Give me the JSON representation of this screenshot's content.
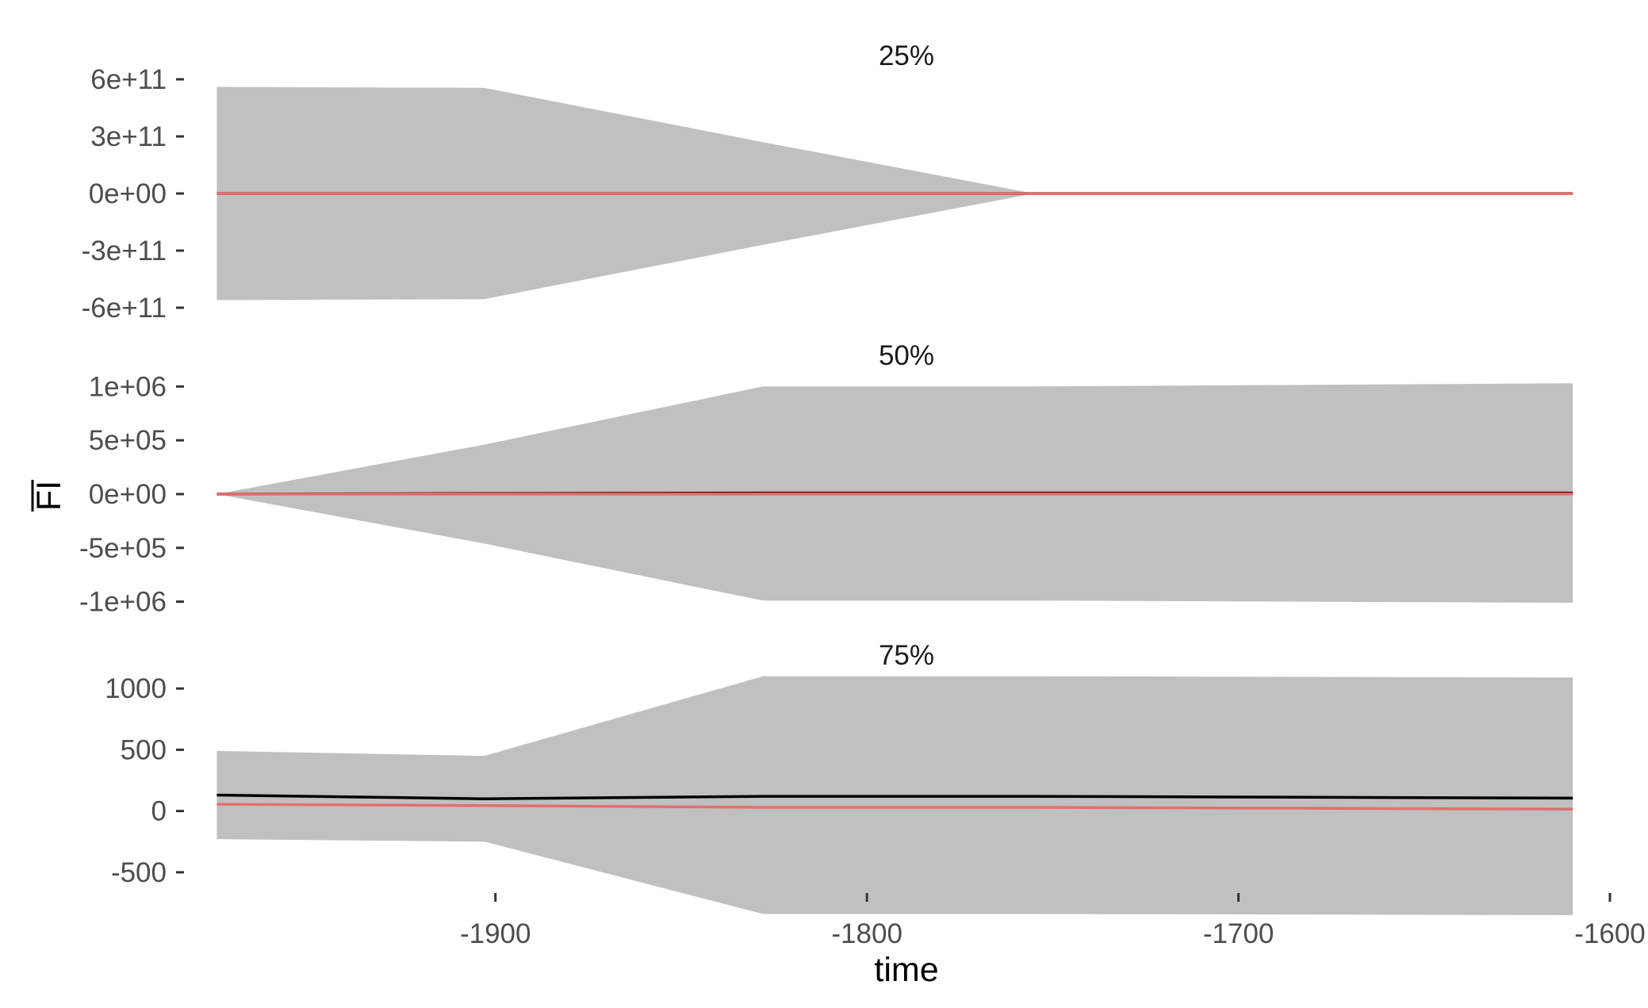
{
  "chart_data": {
    "type": "area",
    "xlabel": "time",
    "ylabel": "FI",
    "ylabel_overline": true,
    "grid": false,
    "x_ticks": [
      -1900,
      -1800,
      -1700,
      -1600
    ],
    "x_tick_labels": [
      "-1900",
      "-1800",
      "-1700",
      "-1600"
    ],
    "xlim": [
      -1980,
      -1600
    ],
    "colors": {
      "band": "#c0c0c0",
      "black_line": "#000000",
      "red_line": "#e07070",
      "dark_line": "#5a0000"
    },
    "panels": [
      {
        "title": "25%",
        "ylim": [
          -650000000000.0,
          650000000000.0
        ],
        "y_ticks": [
          600000000000,
          300000000000,
          0,
          -300000000000,
          -600000000000
        ],
        "y_tick_labels": [
          "6e+11",
          "3e+11",
          "0e+00",
          "-3e+11",
          "-6e+11"
        ],
        "x": [
          -1975,
          -1903,
          -1828,
          -1755,
          -1610
        ],
        "band_upper": [
          560000000000,
          555000000000,
          270000000000,
          0,
          0
        ],
        "band_lower": [
          -560000000000,
          -555000000000,
          -270000000000,
          0,
          0
        ],
        "series": [
          {
            "values": [
              0,
              0,
              0,
              0,
              0
            ],
            "color": "#5a0000"
          },
          {
            "values": [
              0,
              0,
              0,
              0,
              0
            ],
            "color": "#e07070"
          }
        ]
      },
      {
        "title": "50%",
        "ylim": [
          -1150000,
          1150000
        ],
        "y_ticks": [
          1000000,
          500000,
          0,
          -500000,
          -1000000
        ],
        "y_tick_labels": [
          "1e+06",
          "5e+05",
          "0e+00",
          "-5e+05",
          "-1e+06"
        ],
        "x": [
          -1975,
          -1903,
          -1828,
          -1755,
          -1610
        ],
        "band_upper": [
          0,
          460000,
          1000000,
          1000000,
          1030000
        ],
        "band_lower": [
          0,
          -460000,
          -990000,
          -990000,
          -1010000
        ],
        "series": [
          {
            "values": [
              0,
              5000,
              10000,
              10000,
              10000
            ],
            "color": "#5a0000"
          },
          {
            "values": [
              0,
              0,
              0,
              0,
              0
            ],
            "color": "#e07070"
          }
        ]
      },
      {
        "title": "75%",
        "ylim": [
          -870,
          1150
        ],
        "y_ticks": [
          1000,
          500,
          0,
          -500
        ],
        "y_tick_labels": [
          "1000",
          "500",
          "0",
          "-500"
        ],
        "x": [
          -1975,
          -1903,
          -1828,
          -1755,
          -1610
        ],
        "band_upper": [
          490,
          450,
          1100,
          1100,
          1090
        ],
        "band_lower": [
          -230,
          -250,
          -840,
          -840,
          -850
        ],
        "series": [
          {
            "values": [
              130,
              100,
              120,
              120,
              105
            ],
            "color": "#000000"
          },
          {
            "values": [
              55,
              45,
              30,
              30,
              15
            ],
            "color": "#e07070"
          }
        ]
      }
    ]
  }
}
